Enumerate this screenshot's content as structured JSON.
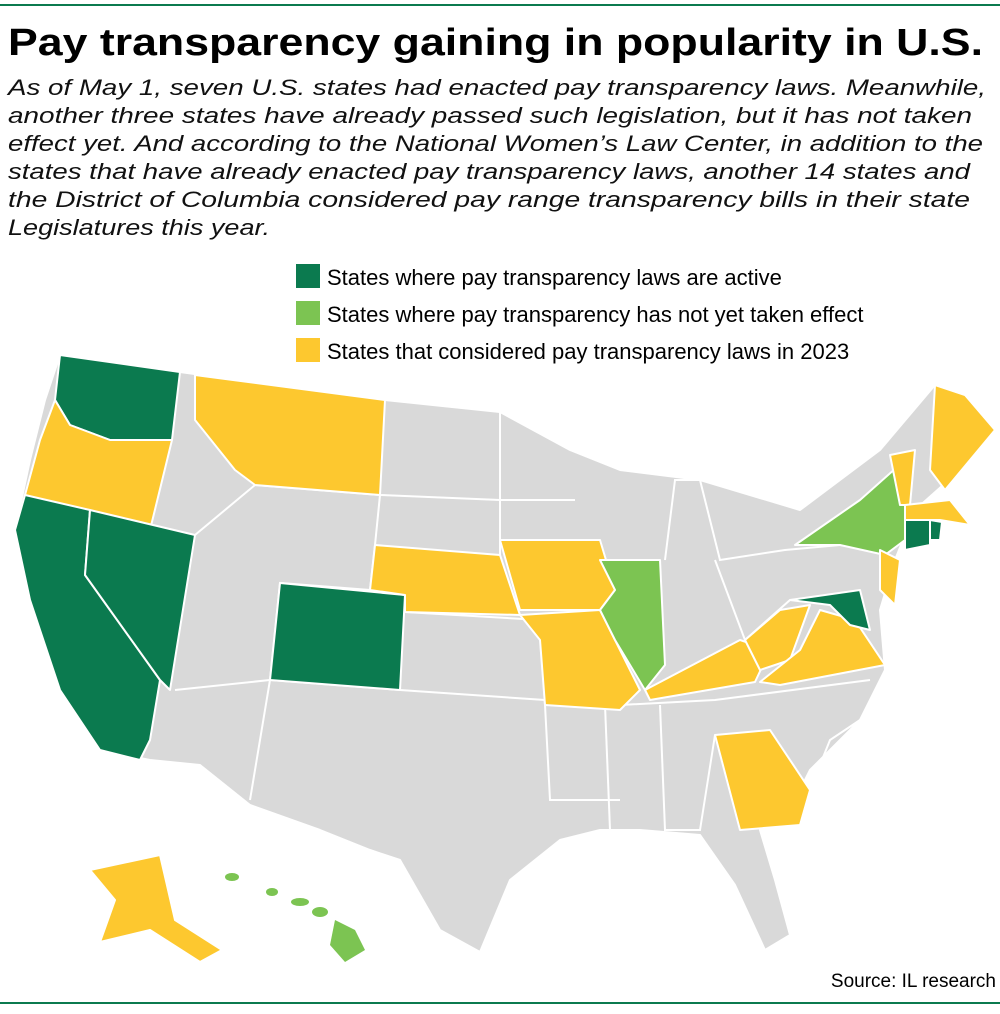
{
  "header": {
    "title": "Pay transparency gaining in popularity in U.S.",
    "subtitle_lines": [
      "As of May 1, seven U.S. states had enacted pay transparency laws. Meanwhile,",
      "another three states have already passed such legislation, but it has not taken",
      "effect yet. And according to the National Women’s Law Center, in addition to the",
      "states that have already enacted pay transparency laws, another 14 states and",
      "the District of Columbia considered pay range transparency bills in their state",
      "Legislatures this year."
    ]
  },
  "legend": {
    "items": [
      {
        "label": "States where pay transparency laws are active",
        "color": "#0b7a4f"
      },
      {
        "label": "States where pay transparency has not yet taken effect",
        "color": "#7cc452"
      },
      {
        "label": "States that considered pay transparency laws in 2023",
        "color": "#fdc82f"
      }
    ]
  },
  "source": "Source: IL research"
}
